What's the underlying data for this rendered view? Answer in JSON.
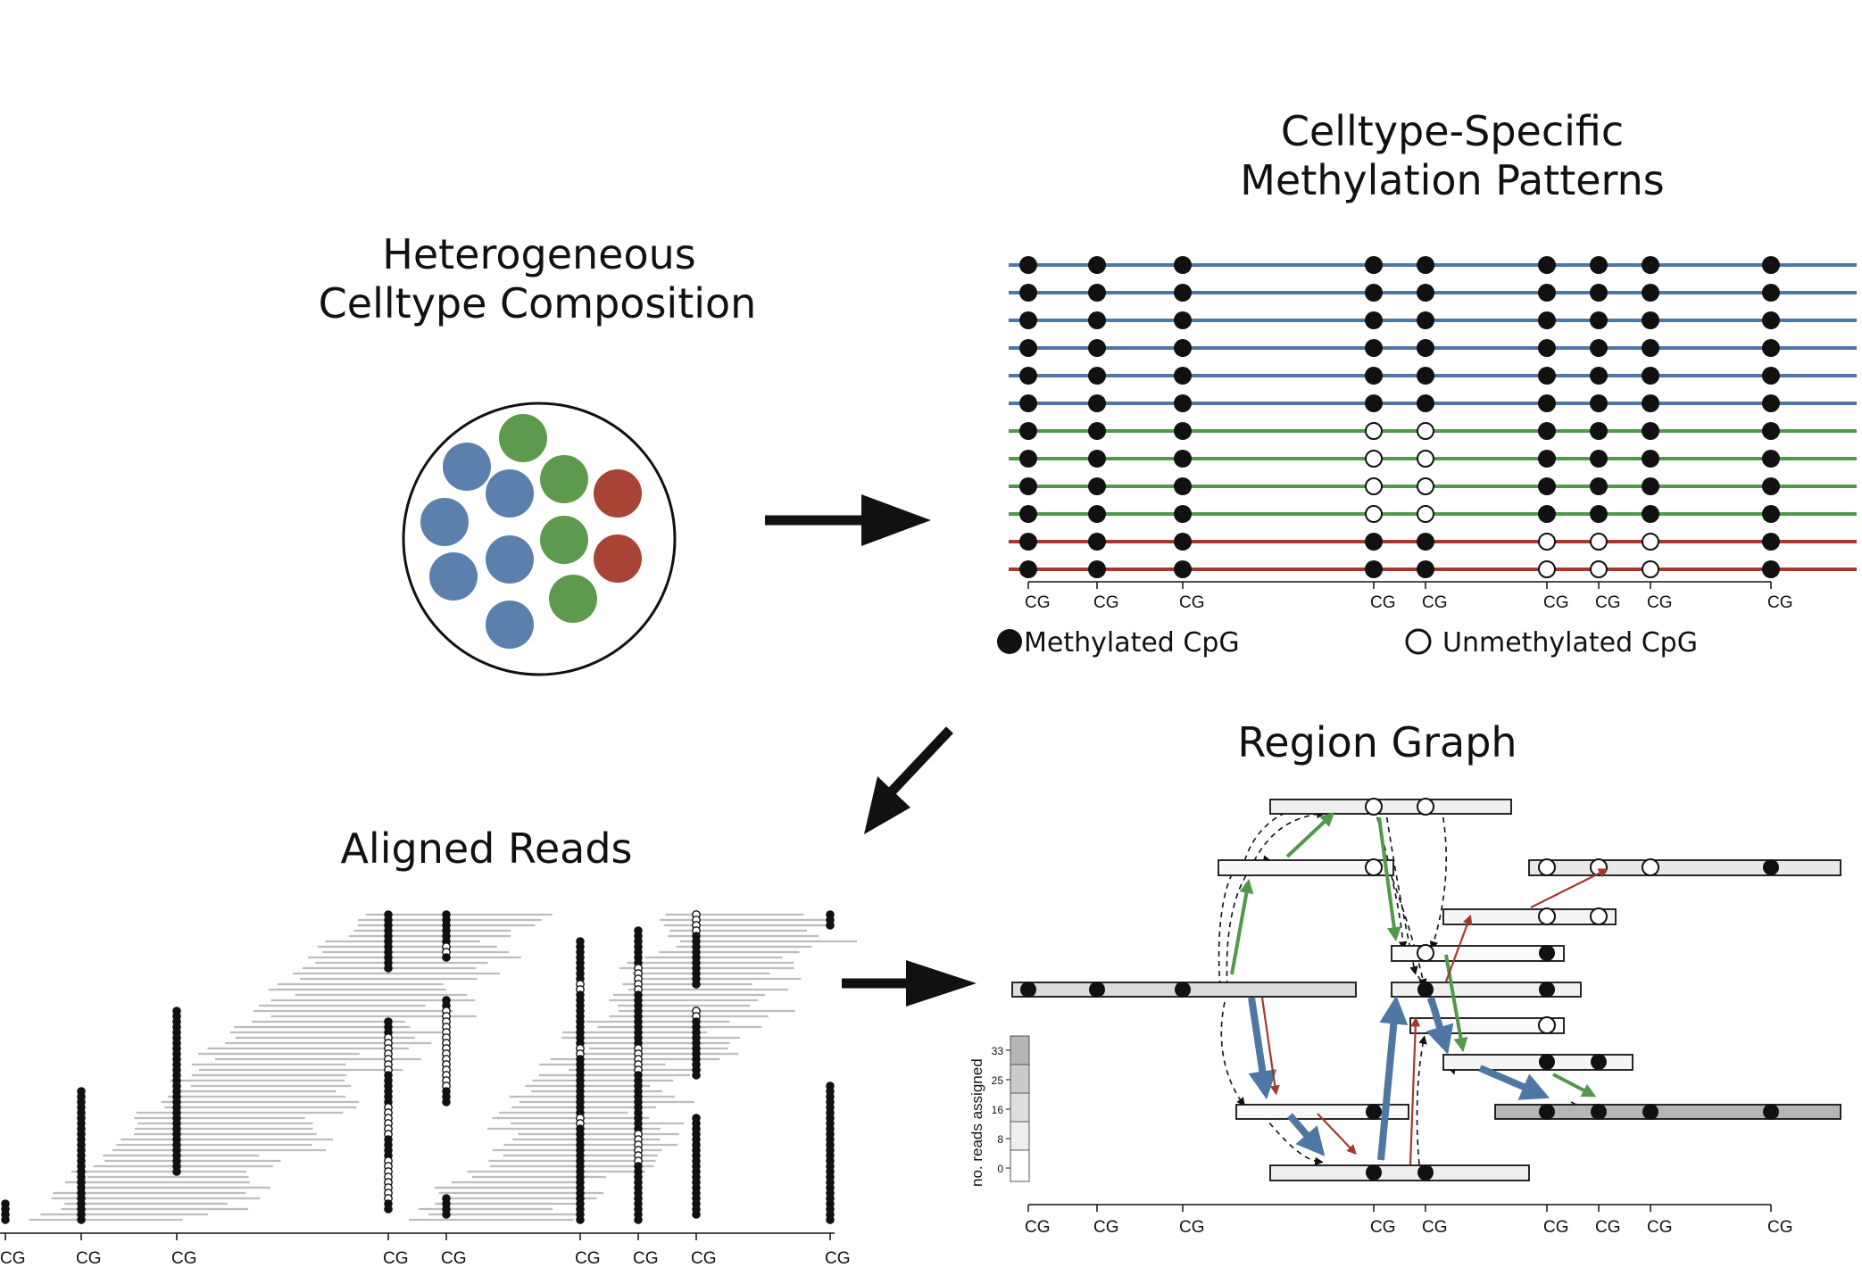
{
  "panels": {
    "composition": {
      "title_line1": "Heterogeneous",
      "title_line2": "Celltype Composition"
    },
    "patterns": {
      "title_line1": "Celltype-Specific",
      "title_line2": "Methylation Patterns"
    },
    "reads": {
      "title": "Aligned Reads"
    },
    "graph": {
      "title": "Region Graph",
      "scale_label": "no. reads assigned",
      "scale_ticks": [
        "33",
        "25",
        "16",
        "8",
        "0"
      ]
    }
  },
  "legend": {
    "methylated": "Methylated CpG",
    "unmethylated": "Unmethylated CpG"
  },
  "cg_label": "CG",
  "colors": {
    "blue": "#5b80ad",
    "green": "#5e9a4d",
    "red": "#a74436",
    "line_blue": "#4f77a3",
    "line_green": "#52984a",
    "line_red": "#a2392f"
  },
  "patterns_rows": [
    {
      "type": "blue",
      "states": "111111111"
    },
    {
      "type": "blue",
      "states": "111111111"
    },
    {
      "type": "blue",
      "states": "111111111"
    },
    {
      "type": "blue",
      "states": "111111111"
    },
    {
      "type": "blue",
      "states": "111111111"
    },
    {
      "type": "blue",
      "states": "111111111"
    },
    {
      "type": "green",
      "states": "111001111"
    },
    {
      "type": "green",
      "states": "111001111"
    },
    {
      "type": "green",
      "states": "111001111"
    },
    {
      "type": "green",
      "states": "111001111"
    },
    {
      "type": "red",
      "states": "111110001"
    },
    {
      "type": "red",
      "states": "111110001"
    }
  ],
  "cells": [
    {
      "type": "blue"
    },
    {
      "type": "blue"
    },
    {
      "type": "blue"
    },
    {
      "type": "blue"
    },
    {
      "type": "blue"
    },
    {
      "type": "blue"
    },
    {
      "type": "green"
    },
    {
      "type": "green"
    },
    {
      "type": "green"
    },
    {
      "type": "green"
    },
    {
      "type": "red"
    },
    {
      "type": "red"
    }
  ]
}
